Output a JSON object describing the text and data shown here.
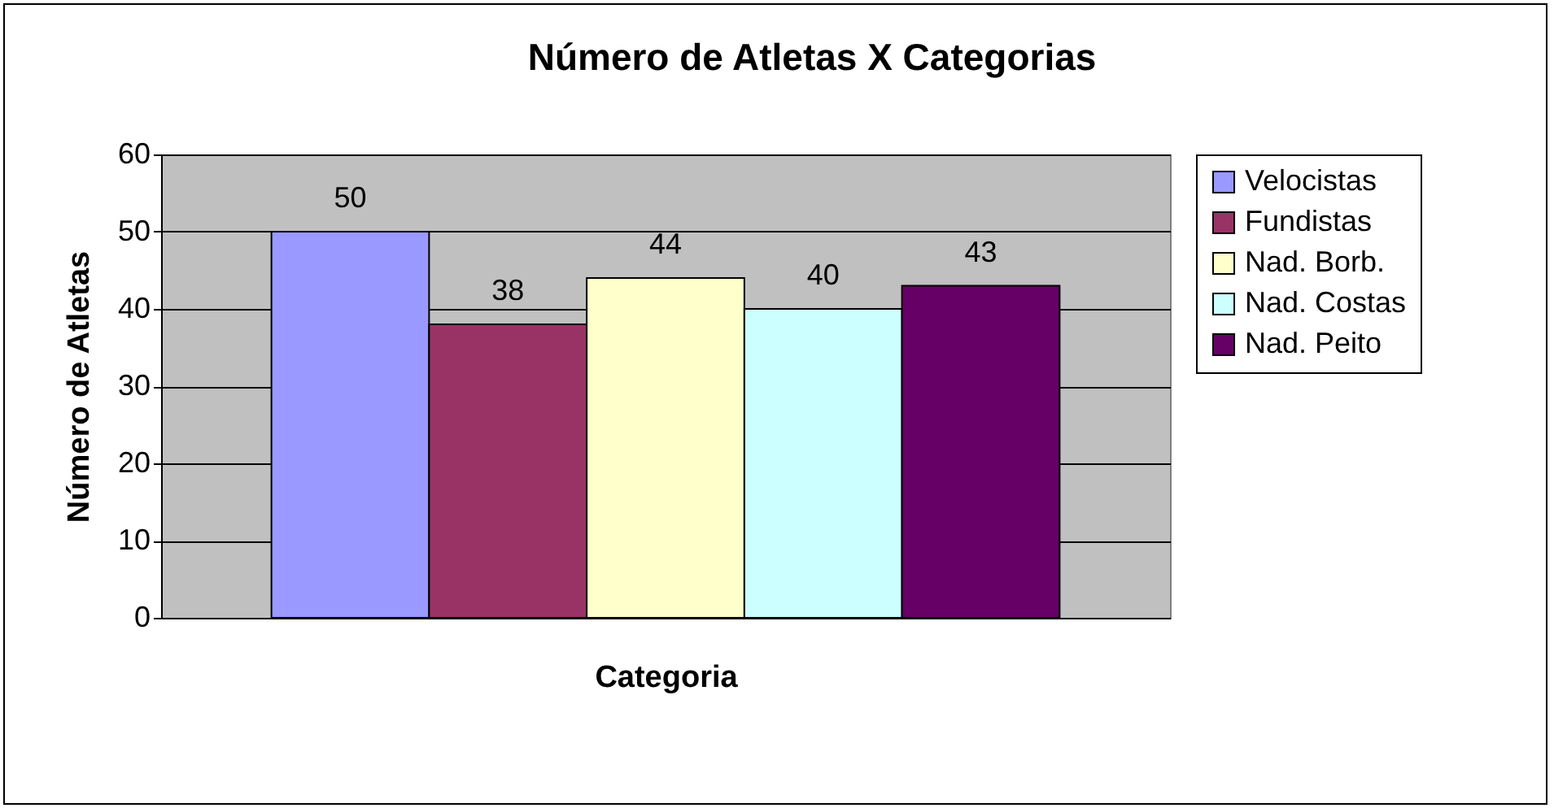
{
  "chart_data": {
    "type": "bar",
    "title": "Número de Atletas X Categorias",
    "xlabel": "Categoria",
    "ylabel": "Número de Atletas",
    "categories": [
      null
    ],
    "series": [
      {
        "name": "Velocistas",
        "color": "#9999ff",
        "values": [
          50
        ]
      },
      {
        "name": "Fundistas",
        "color": "#993366",
        "values": [
          38
        ]
      },
      {
        "name": "Nad. Borb.",
        "color": "#ffffcc",
        "values": [
          44
        ]
      },
      {
        "name": "Nad. Costas",
        "color": "#ccffff",
        "values": [
          40
        ]
      },
      {
        "name": "Nad. Peito",
        "color": "#660066",
        "values": [
          43
        ]
      }
    ],
    "ylim": [
      0,
      60
    ],
    "yticks": [
      0,
      10,
      20,
      30,
      40,
      50,
      60
    ],
    "grid": "y",
    "legend": "right",
    "data_labels": true
  }
}
